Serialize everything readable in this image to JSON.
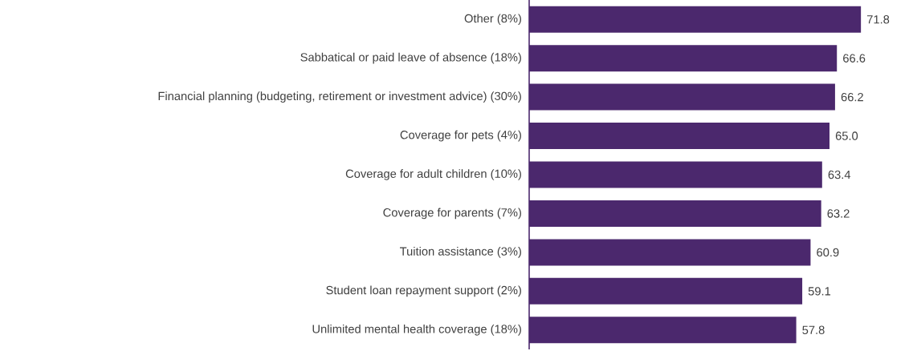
{
  "chart_data": {
    "type": "bar",
    "orientation": "horizontal",
    "categories": [
      "Other (8%)",
      "Sabbatical or paid leave of absence (18%)",
      "Financial planning (budgeting, retirement or investment advice) (30%)",
      "Coverage for pets (4%)",
      "Coverage for adult children (10%)",
      "Coverage for parents (7%)",
      "Tuition assistance (3%)",
      "Student loan repayment support (2%)",
      "Unlimited mental health coverage (18%)"
    ],
    "values": [
      71.8,
      66.6,
      66.2,
      65.0,
      63.4,
      63.2,
      60.9,
      59.1,
      57.8
    ],
    "value_labels": [
      "71.8",
      "66.6",
      "66.2",
      "65.0",
      "63.4",
      "63.2",
      "60.9",
      "59.1",
      "57.8"
    ],
    "color": "#4b286d",
    "tick_labels": "y"
  }
}
